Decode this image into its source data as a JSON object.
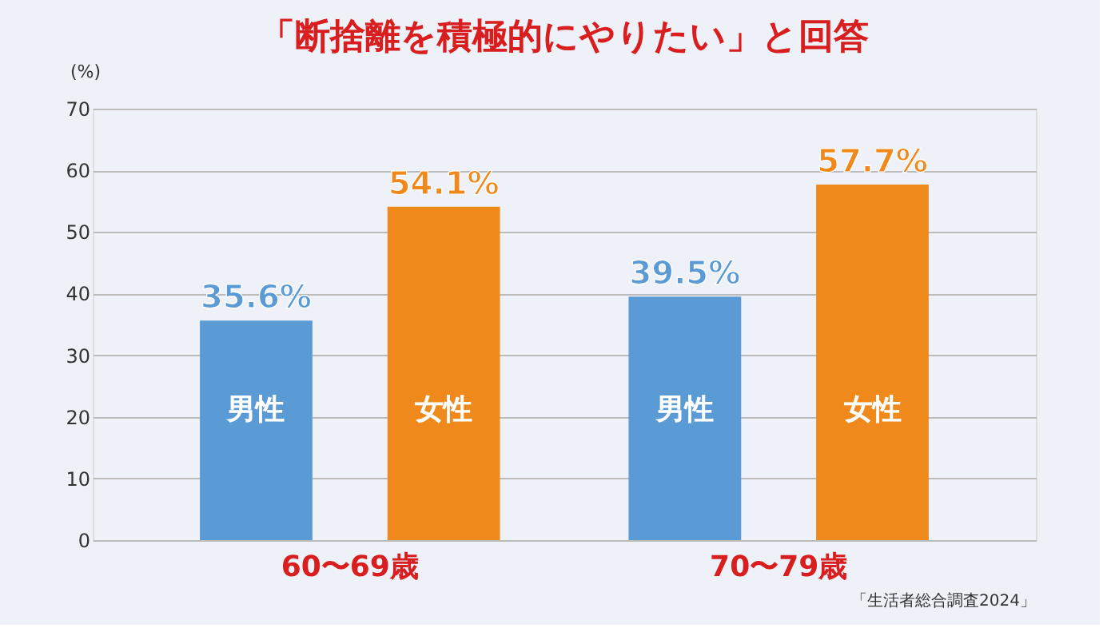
{
  "chart_data": {
    "type": "bar",
    "title": "「断捨離を積極的にやりたい」と回答",
    "ylabel": "(%)",
    "categories": [
      "60〜69歳",
      "70〜79歳"
    ],
    "series": [
      {
        "name": "男性",
        "color": "#5b9bd5",
        "values": [
          35.6,
          39.5
        ],
        "value_labels": [
          "35.6%",
          "39.5%"
        ]
      },
      {
        "name": "女性",
        "color": "#f0891c",
        "values": [
          54.1,
          57.7
        ],
        "value_labels": [
          "54.1%",
          "57.7%"
        ]
      }
    ],
    "ylim": [
      0,
      70
    ],
    "yticks": [
      0,
      10,
      20,
      30,
      40,
      50,
      60,
      70
    ],
    "grid": "y",
    "legend": false,
    "annotations": [
      "「生活者総合調査2024」"
    ]
  }
}
